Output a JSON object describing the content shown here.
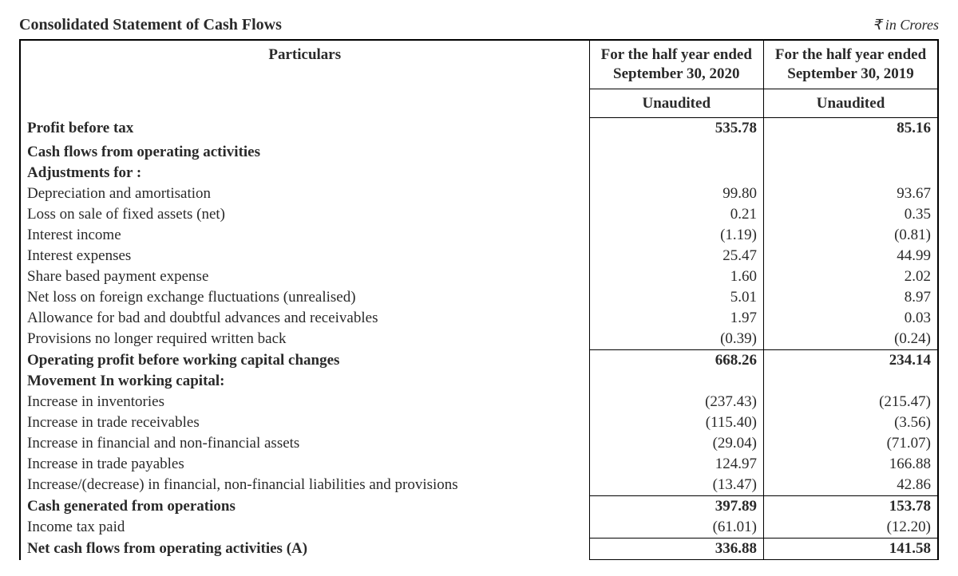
{
  "title": "Consolidated Statement of Cash Flows",
  "currency_note": "₹ in Crores",
  "header": {
    "particulars": "Particulars",
    "col1_line1": "For the half year ended",
    "col1_line2": "September 30, 2020",
    "col2_line1": "For the half year ended",
    "col2_line2": "September 30, 2019",
    "audit": "Unaudited"
  },
  "rows": [
    {
      "label": "Profit before tax",
      "c1": "535.78",
      "c2": "85.16",
      "bold": true
    },
    {
      "label": " ",
      "c1": "",
      "c2": ""
    },
    {
      "label": "Cash flows from operating activities",
      "c1": "",
      "c2": "",
      "bold": true
    },
    {
      "label": "Adjustments for :",
      "c1": "",
      "c2": "",
      "bold": true
    },
    {
      "label": "Depreciation and amortisation",
      "c1": "99.80",
      "c2": "93.67"
    },
    {
      "label": "Loss on sale of fixed assets (net)",
      "c1": "0.21",
      "c2": "0.35"
    },
    {
      "label": "Interest income",
      "c1": "(1.19)",
      "c2": "(0.81)"
    },
    {
      "label": "Interest expenses",
      "c1": "25.47",
      "c2": "44.99"
    },
    {
      "label": "Share based payment expense",
      "c1": "1.60",
      "c2": "2.02"
    },
    {
      "label": "Net loss on foreign exchange fluctuations (unrealised)",
      "c1": "5.01",
      "c2": "8.97"
    },
    {
      "label": "Allowance for bad and doubtful advances and receivables",
      "c1": "1.97",
      "c2": "0.03"
    },
    {
      "label": "Provisions no longer required written back",
      "c1": "(0.39)",
      "c2": "(0.24)",
      "underline": true
    },
    {
      "label": "Operating profit before working capital changes",
      "c1": "668.26",
      "c2": "234.14",
      "bold": true
    },
    {
      "label": "Movement In working capital:",
      "c1": "",
      "c2": "",
      "bold": true
    },
    {
      "label": "Increase in inventories",
      "c1": "(237.43)",
      "c2": "(215.47)"
    },
    {
      "label": "Increase in trade receivables",
      "c1": "(115.40)",
      "c2": "(3.56)"
    },
    {
      "label": "Increase in financial and non-financial assets",
      "c1": "(29.04)",
      "c2": "(71.07)"
    },
    {
      "label": "Increase in trade payables",
      "c1": "124.97",
      "c2": "166.88"
    },
    {
      "label": "Increase/(decrease) in financial, non-financial liabilities and provisions",
      "c1": "(13.47)",
      "c2": "42.86",
      "underline": true
    },
    {
      "label": "Cash generated from operations",
      "c1": "397.89",
      "c2": "153.78",
      "bold": true
    },
    {
      "label": "Income tax paid",
      "c1": "(61.01)",
      "c2": "(12.20)",
      "underline": true
    },
    {
      "label": "Net cash flows from operating activities (A)",
      "c1": "336.88",
      "c2": "141.58",
      "bold": true,
      "underline": true
    }
  ]
}
